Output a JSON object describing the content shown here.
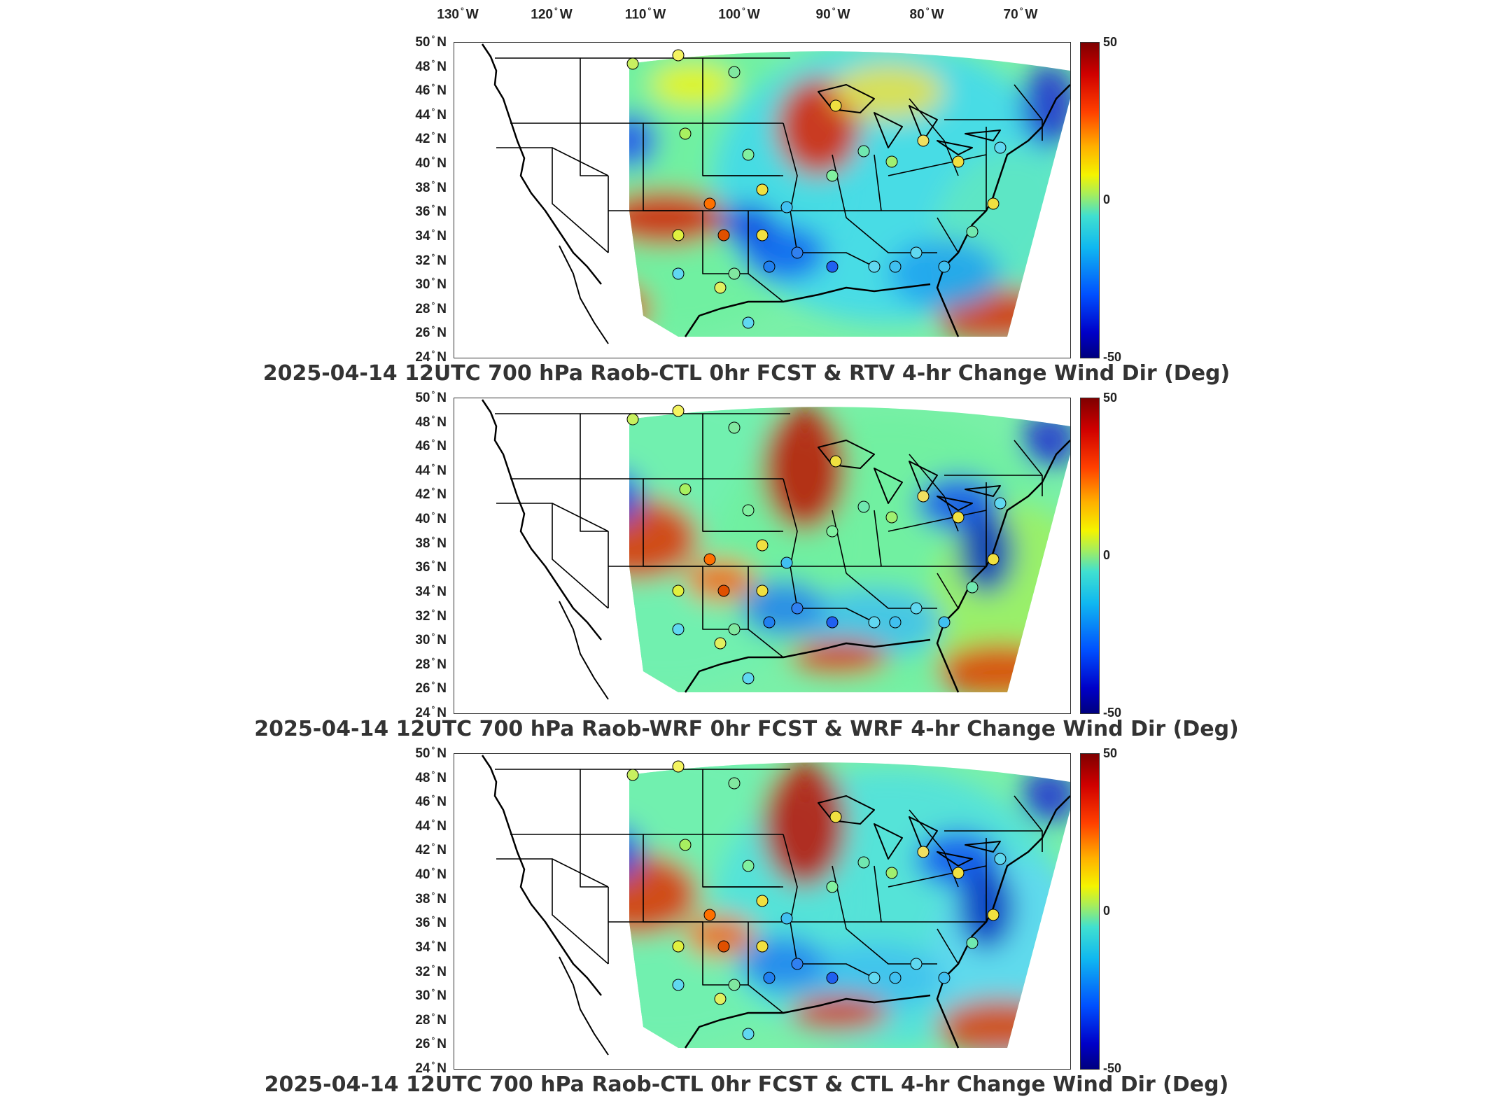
{
  "longitude_labels": [
    {
      "deg": "130",
      "hemi": "W"
    },
    {
      "deg": "120",
      "hemi": "W"
    },
    {
      "deg": "110",
      "hemi": "W"
    },
    {
      "deg": "100",
      "hemi": "W"
    },
    {
      "deg": "90",
      "hemi": "W"
    },
    {
      "deg": "80",
      "hemi": "W"
    },
    {
      "deg": "70",
      "hemi": "W"
    }
  ],
  "latitude_labels": [
    {
      "deg": "50",
      "hemi": "N"
    },
    {
      "deg": "48",
      "hemi": "N"
    },
    {
      "deg": "46",
      "hemi": "N"
    },
    {
      "deg": "44",
      "hemi": "N"
    },
    {
      "deg": "42",
      "hemi": "N"
    },
    {
      "deg": "40",
      "hemi": "N"
    },
    {
      "deg": "38",
      "hemi": "N"
    },
    {
      "deg": "36",
      "hemi": "N"
    },
    {
      "deg": "34",
      "hemi": "N"
    },
    {
      "deg": "32",
      "hemi": "N"
    },
    {
      "deg": "30",
      "hemi": "N"
    },
    {
      "deg": "28",
      "hemi": "N"
    },
    {
      "deg": "26",
      "hemi": "N"
    },
    {
      "deg": "24",
      "hemi": "N"
    }
  ],
  "degree_symbol": "°",
  "colorbar": {
    "max_label": "50",
    "mid_label": "0",
    "min_label": "-50",
    "colormap": [
      "#7f0000",
      "#d00000",
      "#ff4000",
      "#ffb000",
      "#f4f400",
      "#a8ee5a",
      "#40e0d0",
      "#10b8f0",
      "#0050ff",
      "#0000c8",
      "#00007f"
    ]
  },
  "panels": [
    {
      "title": "2025-04-14 12UTC 700 hPa Raob-CTL 0hr FCST & RTV 4-hr Change Wind Dir (Deg)"
    },
    {
      "title": "2025-04-14 12UTC 700 hPa Raob-WRF 0hr FCST & WRF 4-hr Change Wind Dir (Deg)"
    },
    {
      "title": "2025-04-14 12UTC 700 hPa Raob-CTL 0hr FCST & CTL 4-hr Change Wind Dir (Deg)"
    }
  ]
}
